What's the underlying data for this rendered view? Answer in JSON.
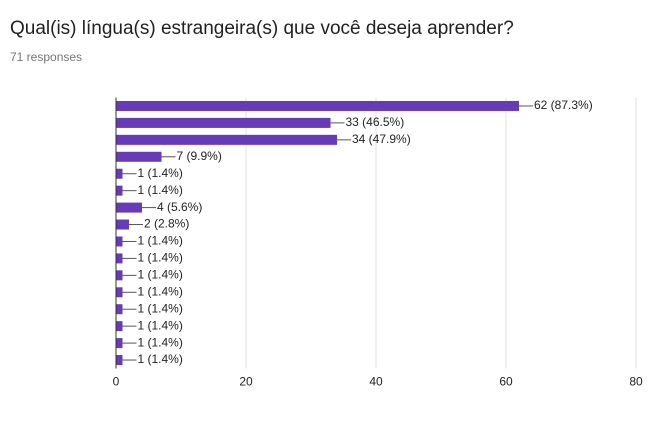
{
  "chart_data": {
    "type": "hbar",
    "title": "Qual(is) língua(s) estrangeira(s) que você deseja aprender?",
    "subtitle": "71 responses",
    "categories": [
      null,
      null,
      null,
      null,
      null,
      null,
      null,
      null,
      null,
      null,
      null,
      null,
      null,
      null,
      null,
      null
    ],
    "values": [
      62,
      33,
      34,
      7,
      1,
      1,
      4,
      2,
      1,
      1,
      1,
      1,
      1,
      1,
      1,
      1
    ],
    "value_labels": [
      "62 (87.3%)",
      "33 (46.5%)",
      "34 (47.9%)",
      "7 (9.9%)",
      "1 (1.4%)",
      "1 (1.4%)",
      "4 (5.6%)",
      "2 (2.8%)",
      "1 (1.4%)",
      "1 (1.4%)",
      "1 (1.4%)",
      "1 (1.4%)",
      "1 (1.4%)",
      "1 (1.4%)",
      "1 (1.4%)",
      "1 (1.4%)"
    ],
    "color": "#673ab7",
    "xlim": [
      0,
      80
    ],
    "xticks": [
      0,
      20,
      40,
      60,
      80
    ],
    "grid": true
  }
}
